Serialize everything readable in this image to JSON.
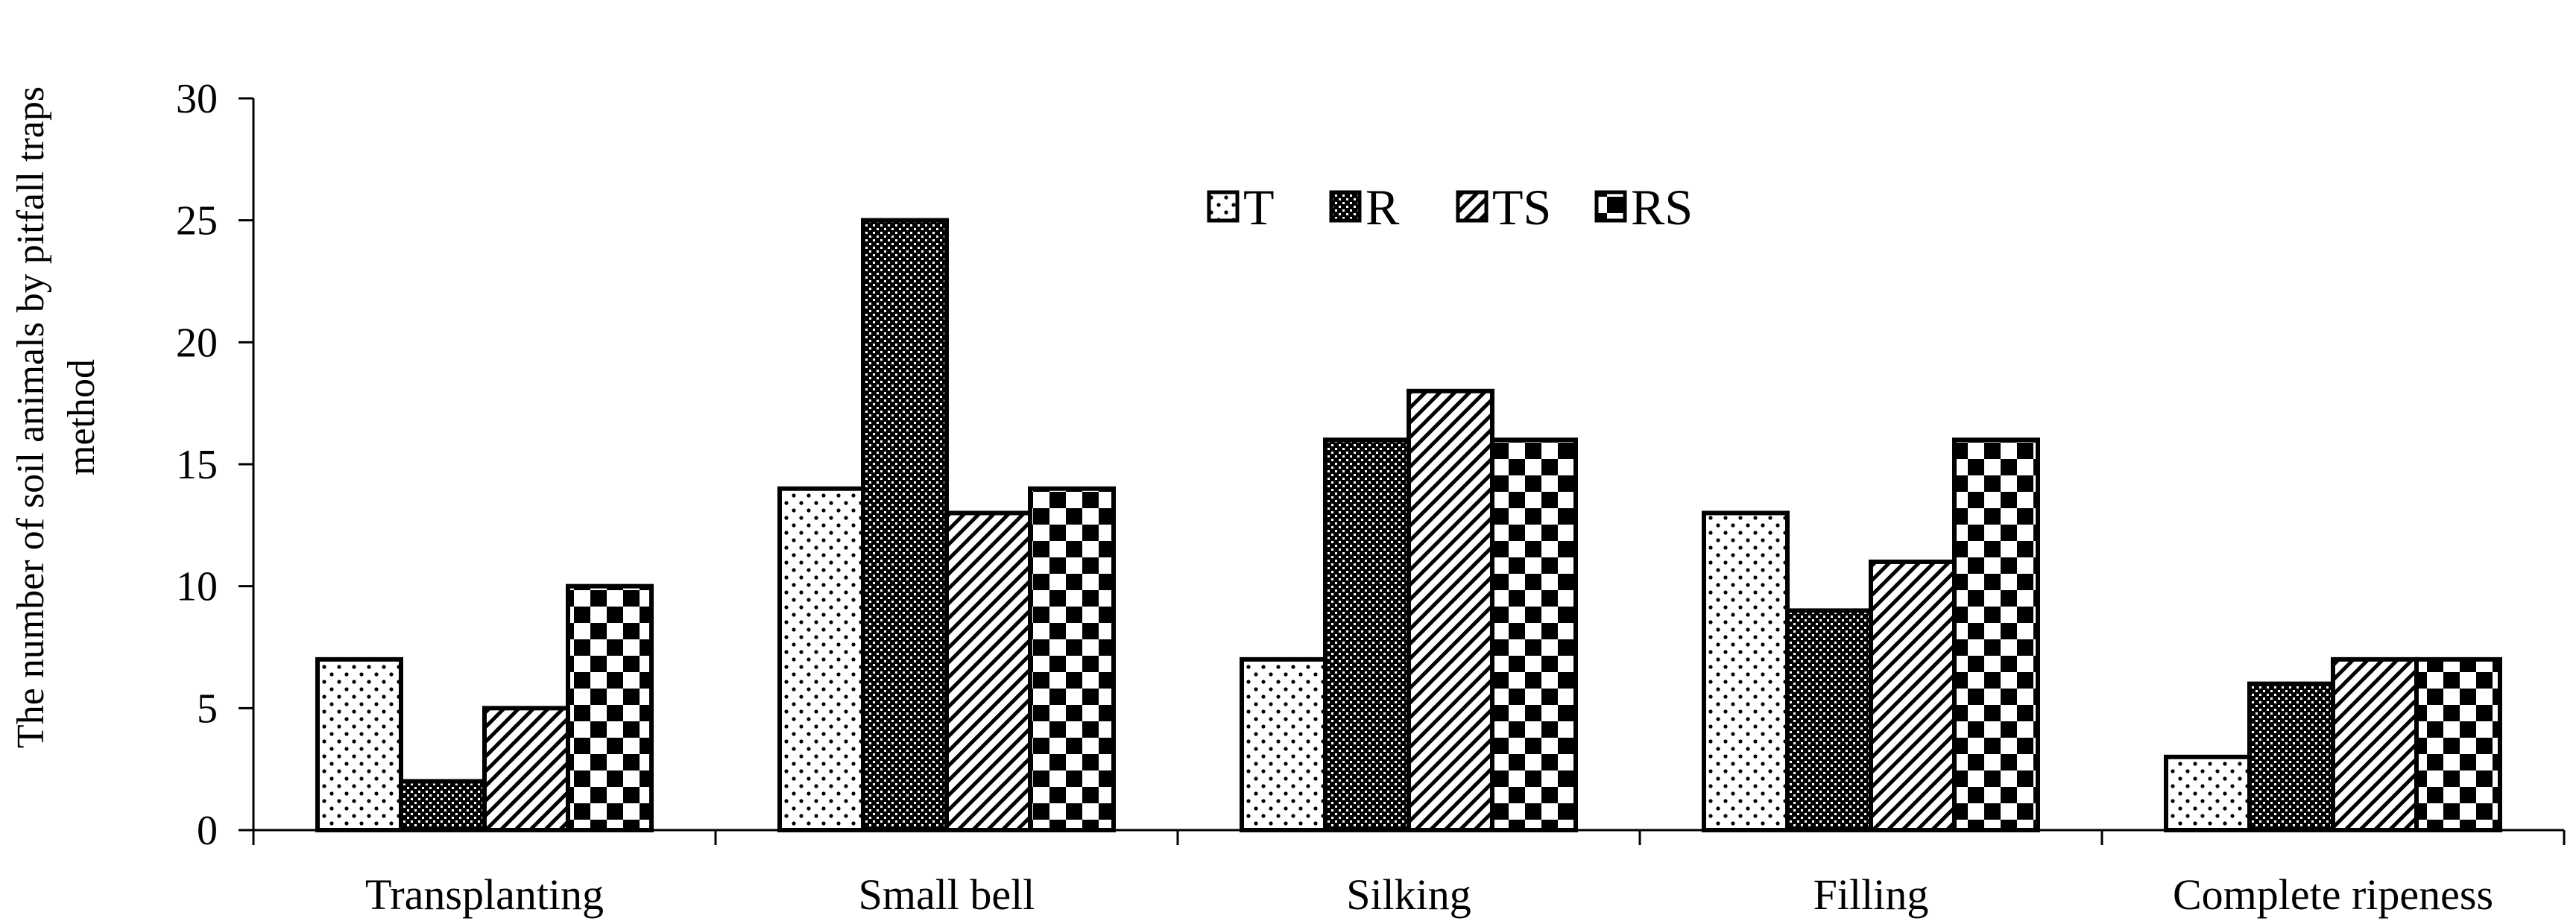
{
  "chart_data": {
    "type": "bar",
    "title": "",
    "xlabel": "",
    "ylabel": [
      "The number of  soil animals by pitfall  traps",
      "method"
    ],
    "categories": [
      "Transplanting",
      "Small bell",
      "Silking",
      "Filling",
      "Complete ripeness"
    ],
    "series": [
      {
        "name": "T",
        "values": [
          7,
          14,
          7,
          13,
          3
        ],
        "pattern": "dots"
      },
      {
        "name": "R",
        "values": [
          2,
          25,
          16,
          9,
          6
        ],
        "pattern": "dense-crosshatch"
      },
      {
        "name": "TS",
        "values": [
          5,
          13,
          18,
          11,
          7
        ],
        "pattern": "diagonal"
      },
      {
        "name": "RS",
        "values": [
          10,
          14,
          16,
          16,
          7
        ],
        "pattern": "checker"
      }
    ],
    "ylim": [
      0,
      30
    ],
    "yticks": [
      0,
      5,
      10,
      15,
      20,
      25,
      30
    ],
    "grid": false,
    "legend_position": "top-center",
    "colors": {
      "ink": "#000000",
      "background": "#ffffff"
    }
  }
}
